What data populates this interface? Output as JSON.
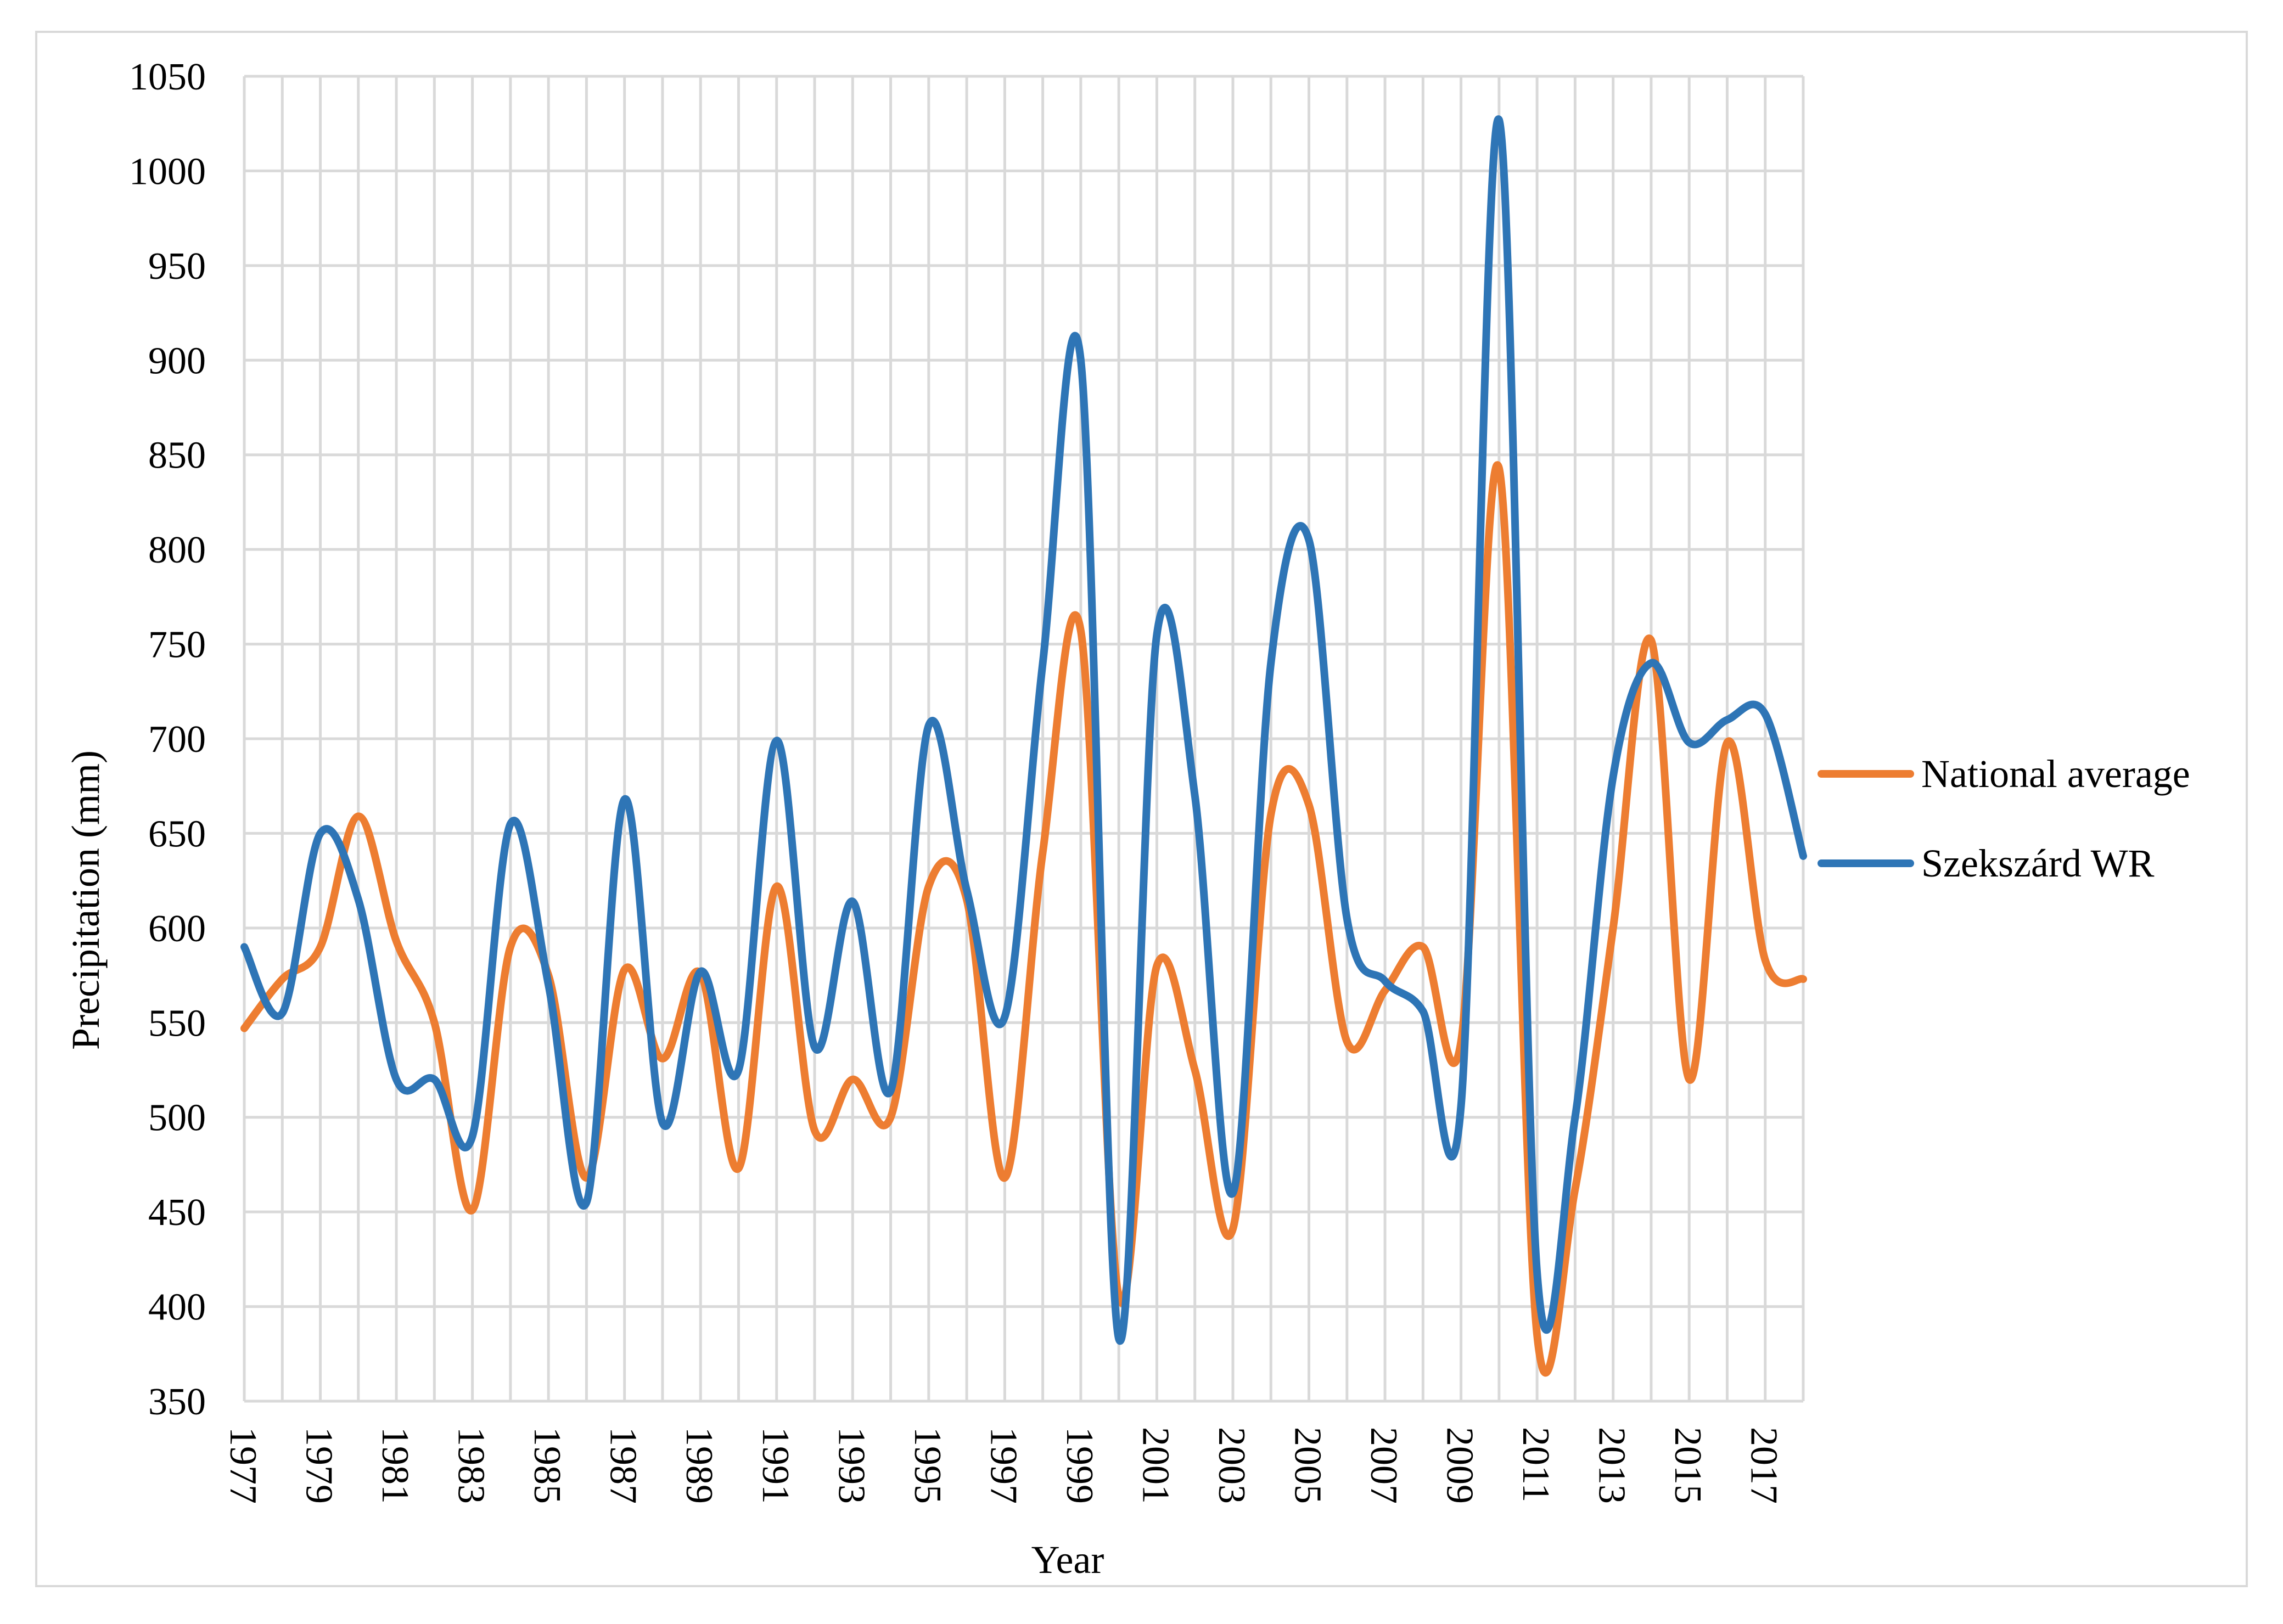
{
  "chart_data": {
    "type": "line",
    "xlabel": "Year",
    "ylabel": "Precipitation (mm)",
    "ylim": [
      350,
      1050
    ],
    "yticks": [
      "350",
      "400",
      "450",
      "500",
      "550",
      "600",
      "650",
      "700",
      "750",
      "800",
      "850",
      "900",
      "950",
      "1000",
      "1050"
    ],
    "xticks": [
      "1977",
      "1979",
      "1981",
      "1983",
      "1985",
      "1987",
      "1989",
      "1991",
      "1993",
      "1995",
      "1997",
      "1999",
      "2001",
      "2003",
      "2005",
      "2007",
      "2009",
      "2011",
      "2013",
      "2015",
      "2017"
    ],
    "x": [
      1977,
      1978,
      1979,
      1980,
      1981,
      1982,
      1983,
      1984,
      1985,
      1986,
      1987,
      1988,
      1989,
      1990,
      1991,
      1992,
      1993,
      1994,
      1995,
      1996,
      1997,
      1998,
      1999,
      2000,
      2001,
      2002,
      2003,
      2004,
      2005,
      2006,
      2007,
      2008,
      2009,
      2010,
      2011,
      2012,
      2013,
      2014,
      2015,
      2016,
      2017,
      2018
    ],
    "grid": true,
    "legend_position": "right",
    "series": [
      {
        "name": "National average",
        "color": "#ED7D31",
        "values": [
          547,
          573,
          590,
          659,
          593,
          550,
          451,
          590,
          575,
          468,
          578,
          531,
          576,
          473,
          622,
          493,
          520,
          500,
          622,
          615,
          468,
          640,
          757,
          405,
          580,
          525,
          441,
          660,
          665,
          540,
          567,
          590,
          540,
          843,
          385,
          462,
          600,
          752,
          520,
          698,
          583,
          573
        ]
      },
      {
        "name": "Szekszárd WR",
        "color": "#2E75B6",
        "values": [
          590,
          555,
          650,
          615,
          520,
          520,
          490,
          655,
          570,
          455,
          668,
          497,
          577,
          525,
          699,
          537,
          614,
          514,
          707,
          620,
          553,
          740,
          900,
          383,
          755,
          670,
          460,
          740,
          805,
          605,
          572,
          556,
          506,
          1027,
          418,
          500,
          680,
          740,
          698,
          710,
          713,
          638
        ]
      }
    ]
  }
}
